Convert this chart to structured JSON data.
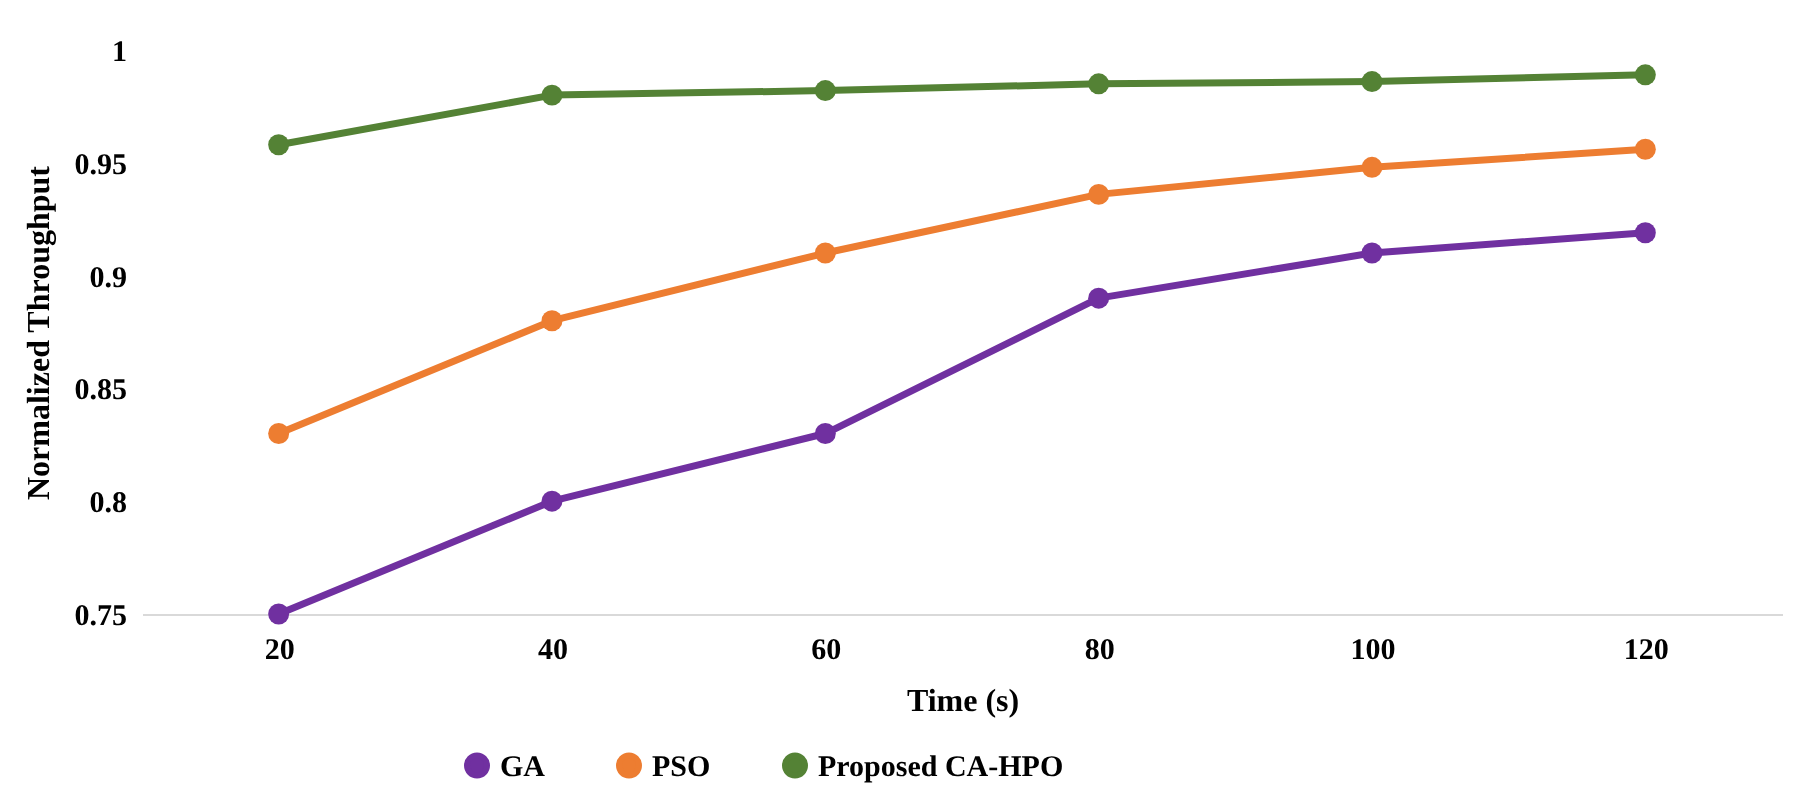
{
  "chart_data": {
    "type": "line",
    "xlabel": "Time (s)",
    "ylabel": "Normalized Throughput",
    "categories": [
      "20",
      "40",
      "60",
      "80",
      "100",
      "120"
    ],
    "series": [
      {
        "name": "GA",
        "color": "#7030a0",
        "values": [
          0.75,
          0.8,
          0.83,
          0.89,
          0.91,
          0.919
        ]
      },
      {
        "name": "PSO",
        "color": "#ed7d31",
        "values": [
          0.83,
          0.88,
          0.91,
          0.936,
          0.948,
          0.956
        ]
      },
      {
        "name": "Proposed CA-HPO",
        "color": "#548235",
        "values": [
          0.958,
          0.98,
          0.982,
          0.985,
          0.986,
          0.989
        ]
      }
    ],
    "ylim": [
      0.75,
      1
    ],
    "yticks": [
      0.75,
      0.8,
      0.85,
      0.9,
      0.95,
      1
    ],
    "grid": false,
    "legend": "bottom",
    "marker": "circle",
    "line_style": "solid"
  }
}
